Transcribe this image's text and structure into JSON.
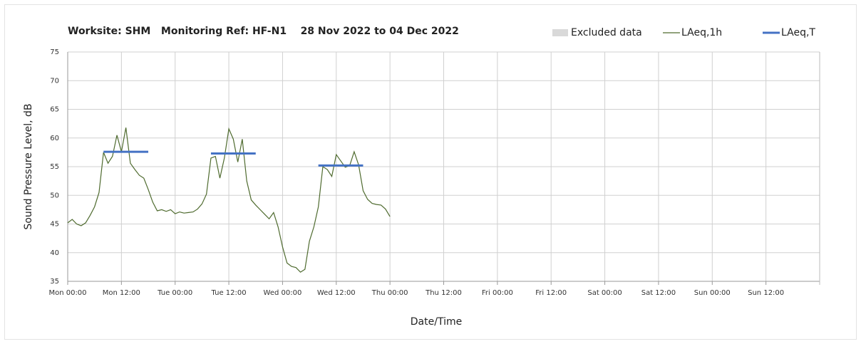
{
  "chart_data": {
    "type": "line",
    "title": "Worksite: SHM   Monitoring Ref: HF-N1    28 Nov 2022 to 04 Dec 2022",
    "y_label": "Sound Pressure Level, dB",
    "x_label": "Date/Time",
    "xlim": [
      0,
      168
    ],
    "xticks": [
      {
        "value": 0,
        "label": "Mon 00:00"
      },
      {
        "value": 12,
        "label": "Mon 12:00"
      },
      {
        "value": 24,
        "label": "Tue 00:00"
      },
      {
        "value": 36,
        "label": "Tue 12:00"
      },
      {
        "value": 48,
        "label": "Wed 00:00"
      },
      {
        "value": 60,
        "label": "Wed 12:00"
      },
      {
        "value": 72,
        "label": "Thu 00:00"
      },
      {
        "value": 84,
        "label": "Thu 12:00"
      },
      {
        "value": 96,
        "label": "Fri 00:00"
      },
      {
        "value": 108,
        "label": "Fri 12:00"
      },
      {
        "value": 120,
        "label": "Sat 00:00"
      },
      {
        "value": 132,
        "label": "Sat 12:00"
      },
      {
        "value": 144,
        "label": "Sun 00:00"
      },
      {
        "value": 156,
        "label": "Sun 12:00"
      }
    ],
    "ylim": [
      35,
      75
    ],
    "yticks": [
      35,
      40,
      45,
      50,
      55,
      60,
      65,
      70,
      75
    ],
    "grid": true,
    "legend": "top-right",
    "series": [
      {
        "name": "Excluded data",
        "color": "#d9d9d9",
        "x": [],
        "values": []
      },
      {
        "name": "LAeq,1h",
        "color": "#4f6b2f",
        "x": [
          0,
          1,
          2,
          3,
          4,
          5,
          6,
          7,
          8,
          9,
          10,
          11,
          12,
          13,
          14,
          15,
          16,
          17,
          18,
          19,
          20,
          21,
          22,
          23,
          24,
          25,
          26,
          27,
          28,
          29,
          30,
          31,
          32,
          33,
          34,
          35,
          36,
          37,
          38,
          39,
          40,
          41,
          42,
          43,
          44,
          45,
          46,
          47,
          48,
          49,
          50,
          51,
          52,
          53,
          54,
          55,
          56,
          57,
          58,
          59,
          60,
          61,
          62,
          63,
          64,
          65,
          66,
          67,
          68,
          69,
          70,
          71,
          72
        ],
        "values": [
          45.2,
          45.8,
          45.0,
          44.7,
          45.2,
          46.5,
          48.0,
          50.5,
          57.5,
          55.6,
          56.8,
          60.5,
          57.6,
          61.8,
          55.6,
          54.5,
          53.5,
          53.0,
          51.0,
          48.8,
          47.3,
          47.5,
          47.2,
          47.5,
          46.8,
          47.1,
          46.9,
          47.0,
          47.1,
          47.6,
          48.5,
          50.2,
          56.5,
          56.8,
          53.0,
          56.5,
          61.6,
          59.8,
          55.8,
          59.8,
          52.5,
          49.2,
          48.3,
          47.5,
          46.7,
          45.9,
          47.0,
          44.5,
          41.0,
          38.2,
          37.6,
          37.4,
          36.6,
          37.1,
          42.0,
          44.5,
          48.0,
          55.0,
          54.5,
          53.3,
          57.1,
          56.0,
          54.9,
          55.2,
          57.6,
          55.3,
          50.8,
          49.3,
          48.6,
          48.4,
          48.3,
          47.6,
          46.3
        ]
      },
      {
        "name": "LAeq,T",
        "color": "#4472c4",
        "x_start": [
          8,
          32,
          56
        ],
        "x_end": [
          18,
          42,
          66
        ],
        "values": [
          57.6,
          57.3,
          55.2
        ]
      }
    ]
  }
}
